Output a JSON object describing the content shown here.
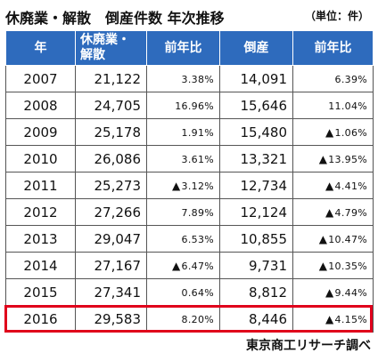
{
  "title": "休廃業・解散　倒産件数 年次推移",
  "unit": "（単位：件）",
  "headers": {
    "year": "年",
    "closures_line1": "休廃業・",
    "closures_line2": "解散",
    "yoy1": "前年比",
    "bankruptcies": "倒産",
    "yoy2": "前年比"
  },
  "rows": [
    {
      "year": "2007",
      "closures": "21,122",
      "yoy1": "3.38%",
      "yoy1_neg": "",
      "bankruptcies": "14,091",
      "yoy2": "6.39%",
      "yoy2_neg": ""
    },
    {
      "year": "2008",
      "closures": "24,705",
      "yoy1": "16.96%",
      "yoy1_neg": "",
      "bankruptcies": "15,646",
      "yoy2": "11.04%",
      "yoy2_neg": ""
    },
    {
      "year": "2009",
      "closures": "25,178",
      "yoy1": "1.91%",
      "yoy1_neg": "",
      "bankruptcies": "15,480",
      "yoy2": "1.06%",
      "yoy2_neg": "▲"
    },
    {
      "year": "2010",
      "closures": "26,086",
      "yoy1": "3.61%",
      "yoy1_neg": "",
      "bankruptcies": "13,321",
      "yoy2": "13.95%",
      "yoy2_neg": "▲"
    },
    {
      "year": "2011",
      "closures": "25,273",
      "yoy1": "3.12%",
      "yoy1_neg": "▲",
      "bankruptcies": "12,734",
      "yoy2": "4.41%",
      "yoy2_neg": "▲"
    },
    {
      "year": "2012",
      "closures": "27,266",
      "yoy1": "7.89%",
      "yoy1_neg": "",
      "bankruptcies": "12,124",
      "yoy2": "4.79%",
      "yoy2_neg": "▲"
    },
    {
      "year": "2013",
      "closures": "29,047",
      "yoy1": "6.53%",
      "yoy1_neg": "",
      "bankruptcies": "10,855",
      "yoy2": "10.47%",
      "yoy2_neg": "▲"
    },
    {
      "year": "2014",
      "closures": "27,167",
      "yoy1": "6.47%",
      "yoy1_neg": "▲",
      "bankruptcies": "9,731",
      "yoy2": "10.35%",
      "yoy2_neg": "▲"
    },
    {
      "year": "2015",
      "closures": "27,341",
      "yoy1": "0.64%",
      "yoy1_neg": "",
      "bankruptcies": "8,812",
      "yoy2": "9.44%",
      "yoy2_neg": "▲"
    },
    {
      "year": "2016",
      "closures": "29,583",
      "yoy1": "8.20%",
      "yoy1_neg": "",
      "bankruptcies": "8,446",
      "yoy2": "4.15%",
      "yoy2_neg": "▲"
    }
  ],
  "source": "東京商工リサーチ調べ",
  "colors": {
    "header_bg": "#2e6bbd",
    "header_text": "#ffffff",
    "highlight": "#e0001b"
  }
}
